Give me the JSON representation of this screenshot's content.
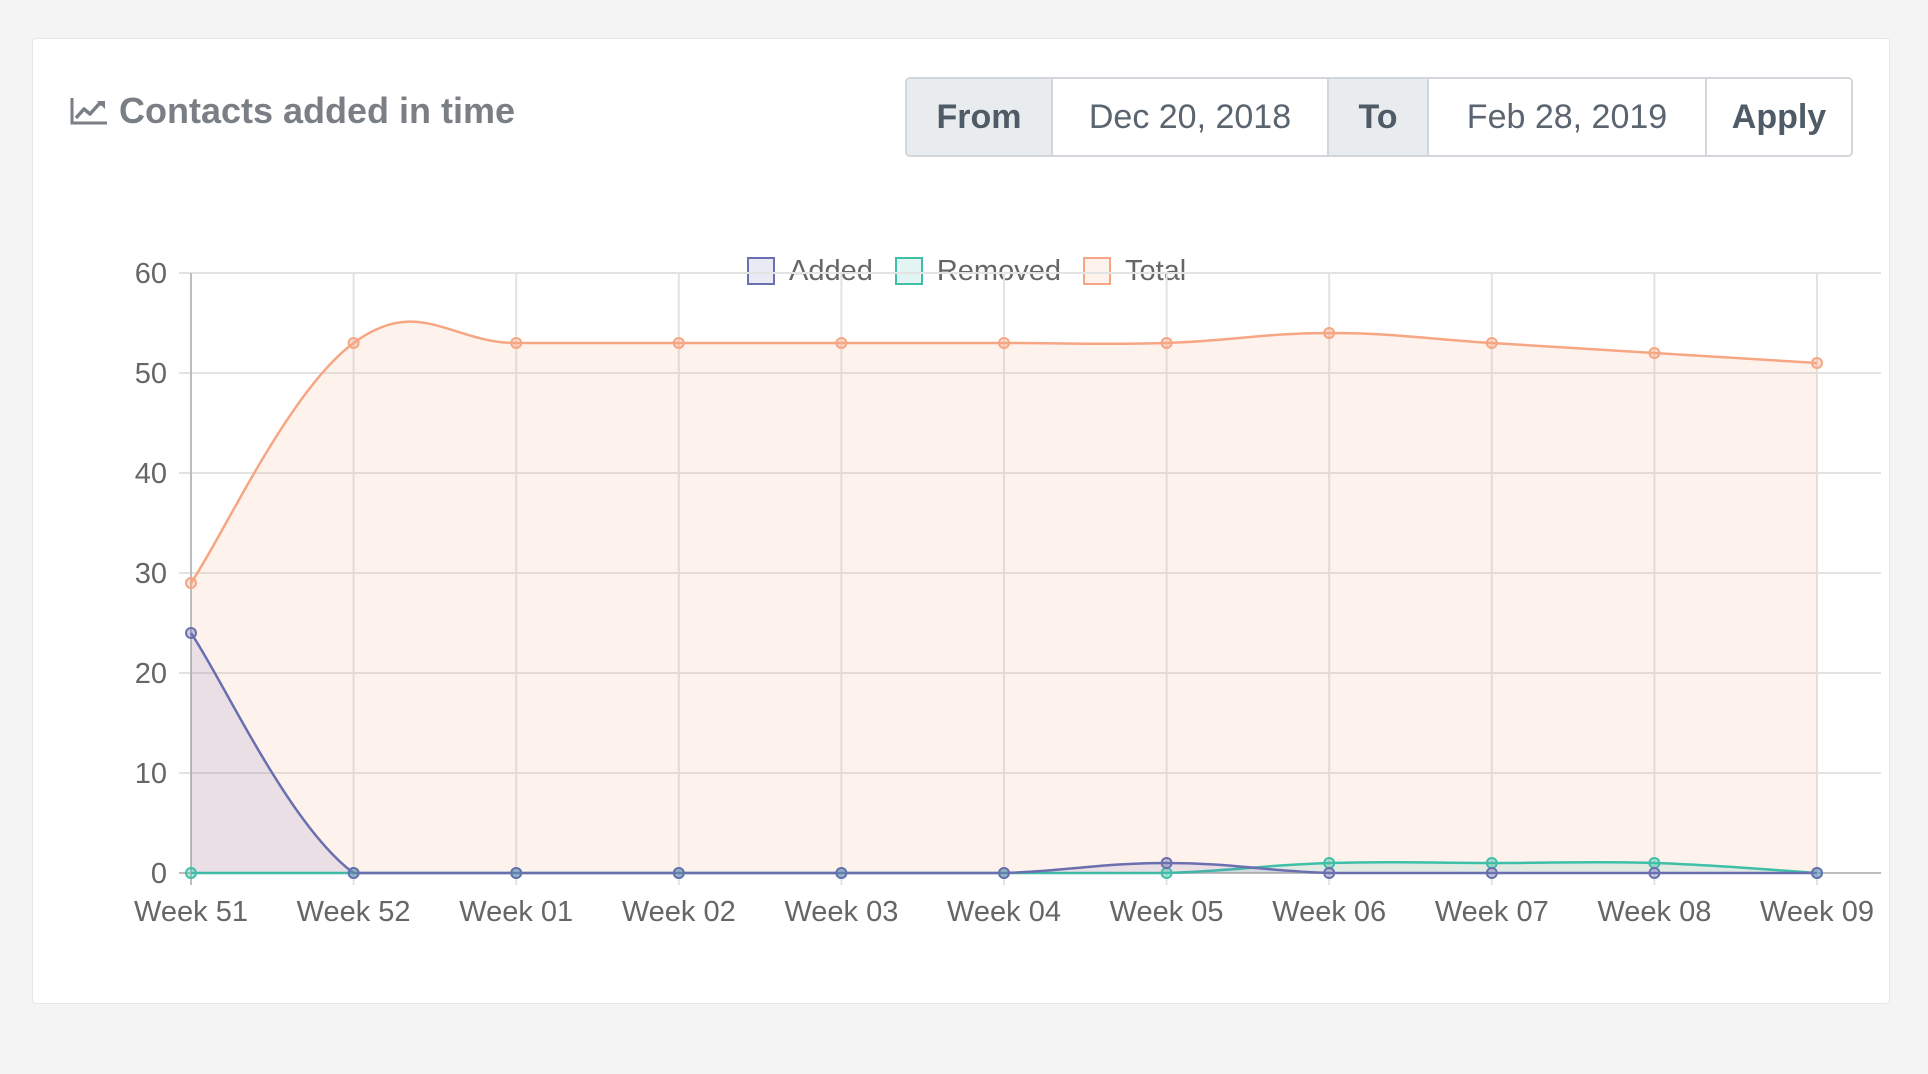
{
  "card": {
    "title": "Contacts added in time",
    "title_icon": "line-chart-icon"
  },
  "date_range": {
    "from_label": "From",
    "from_value": "Dec 20, 2018",
    "to_label": "To",
    "to_value": "Feb 28, 2019",
    "apply_label": "Apply"
  },
  "colors": {
    "added": "#6a6fb0",
    "removed": "#3ebfa8",
    "total": "#f7a683"
  },
  "chart_data": {
    "type": "line",
    "categories": [
      "Week 51",
      "Week 52",
      "Week 01",
      "Week 02",
      "Week 03",
      "Week 04",
      "Week 05",
      "Week 06",
      "Week 07",
      "Week 08",
      "Week 09"
    ],
    "series": [
      {
        "name": "Added",
        "values": [
          24,
          0,
          0,
          0,
          0,
          0,
          1,
          0,
          0,
          0,
          0
        ],
        "fill": true
      },
      {
        "name": "Removed",
        "values": [
          0,
          0,
          0,
          0,
          0,
          0,
          0,
          1,
          1,
          1,
          0
        ],
        "fill": true
      },
      {
        "name": "Total",
        "values": [
          29,
          53,
          53,
          53,
          53,
          53,
          53,
          54,
          53,
          52,
          51
        ],
        "fill": true
      }
    ],
    "y_ticks": [
      "0",
      "10",
      "20",
      "30",
      "40",
      "50",
      "60"
    ],
    "ylim": [
      0,
      60
    ],
    "grid": true,
    "legend": "top-center",
    "curve": "smooth"
  }
}
